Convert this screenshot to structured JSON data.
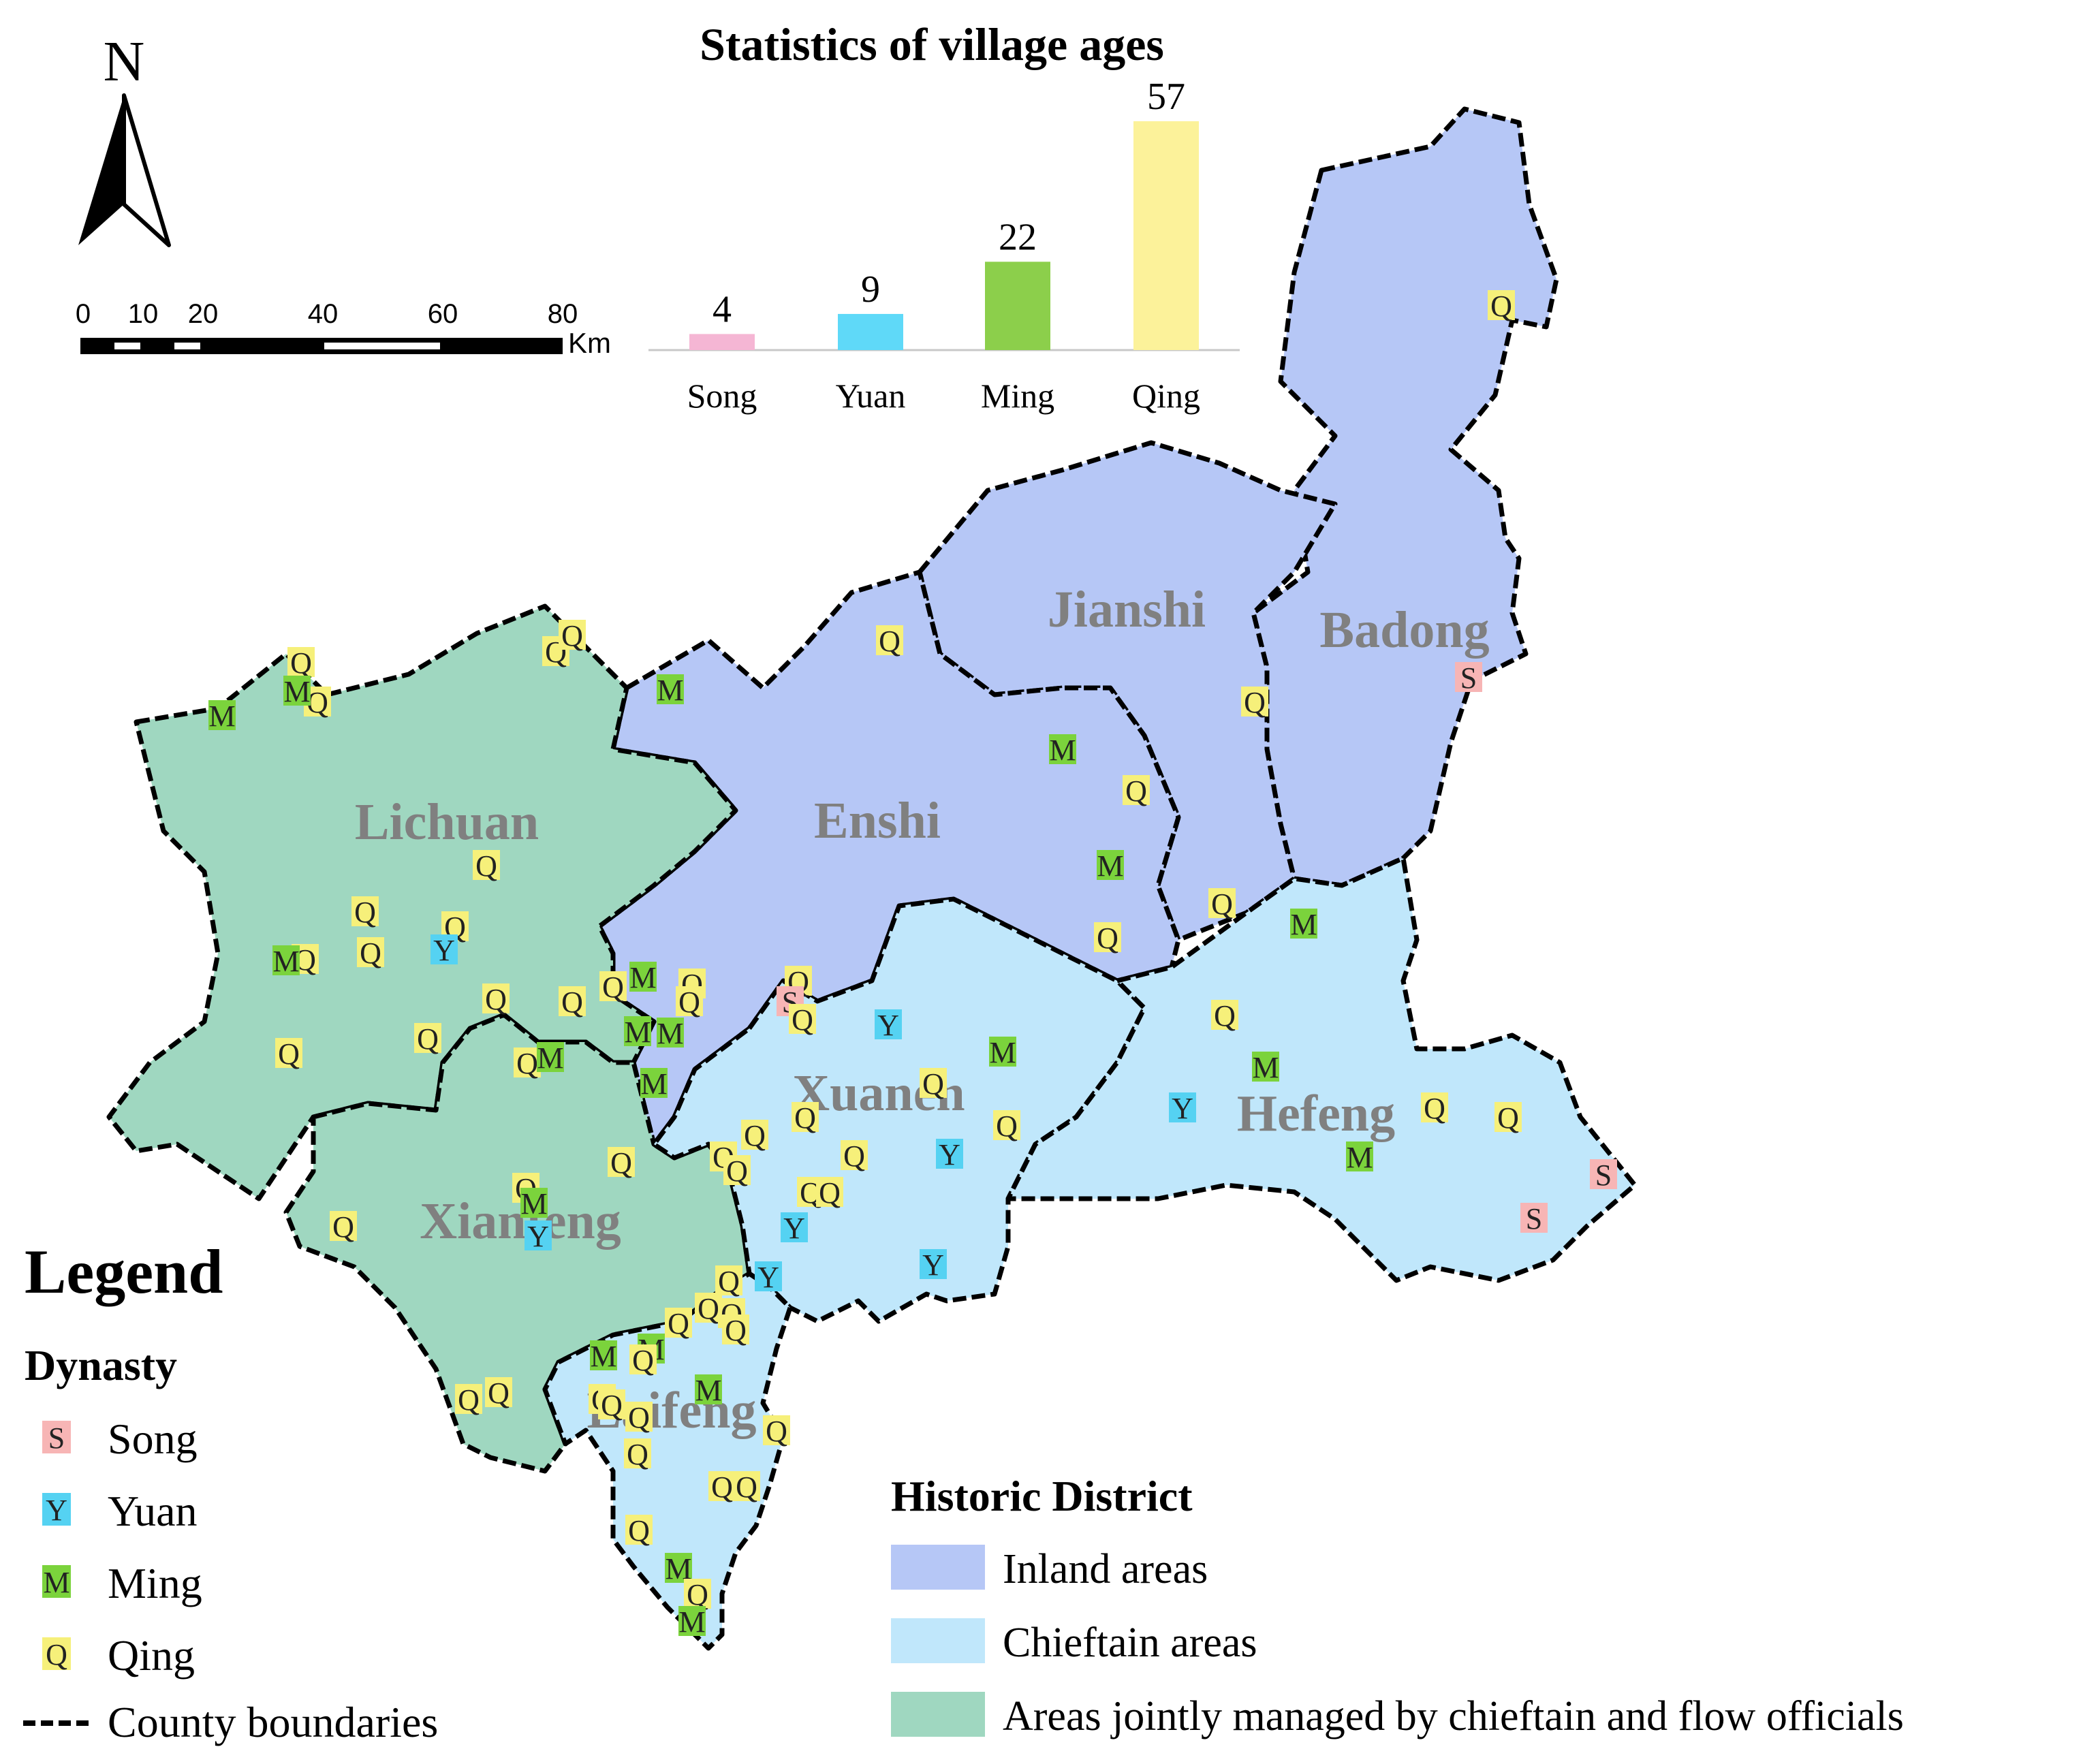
{
  "chart_data": {
    "type": "bar",
    "title": "Statistics of village ages",
    "categories": [
      "Song",
      "Yuan",
      "Ming",
      "Qing"
    ],
    "values": [
      4,
      9,
      22,
      57
    ],
    "colors": [
      "#f5b6d4",
      "#5fd9f8",
      "#8ccf4b",
      "#fcf29a"
    ],
    "ylim": [
      0,
      57
    ],
    "grid": false,
    "legend": "none"
  },
  "map": {
    "north_label": "N",
    "scale": {
      "ticks": [
        "0",
        "10",
        "20",
        "40",
        "60",
        "80"
      ],
      "unit": "Km"
    },
    "counties": [
      "Jianshi",
      "Badong",
      "Lichuan",
      "Enshi",
      "Xuanen",
      "Hefeng",
      "Xianfeng",
      "Laifeng"
    ]
  },
  "legend": {
    "title": "Legend",
    "dynasty_title": "Dynasty",
    "dynasty_items": [
      {
        "symbol": "S",
        "label": "Song",
        "color": "#f7b5b5"
      },
      {
        "symbol": "Y",
        "label": "Yuan",
        "color": "#55d2f2"
      },
      {
        "symbol": "M",
        "label": "Ming",
        "color": "#7bd33c"
      },
      {
        "symbol": "Q",
        "label": "Qing",
        "color": "#f6f07a"
      }
    ],
    "boundary_label": "County boundaries",
    "district_title": "Historic District",
    "district_items": [
      {
        "label": "Inland areas",
        "color": "#b6c7f6"
      },
      {
        "label": "Chieftain areas",
        "color": "#c0e7fb"
      },
      {
        "label": "Areas jointly managed by chieftain and flow officials",
        "color": "#9fd7c0"
      }
    ]
  },
  "colors": {
    "inland": "#b6c7f6",
    "chieftain": "#c0e7fb",
    "joint": "#9fd7c0",
    "county_label": "#808080"
  }
}
